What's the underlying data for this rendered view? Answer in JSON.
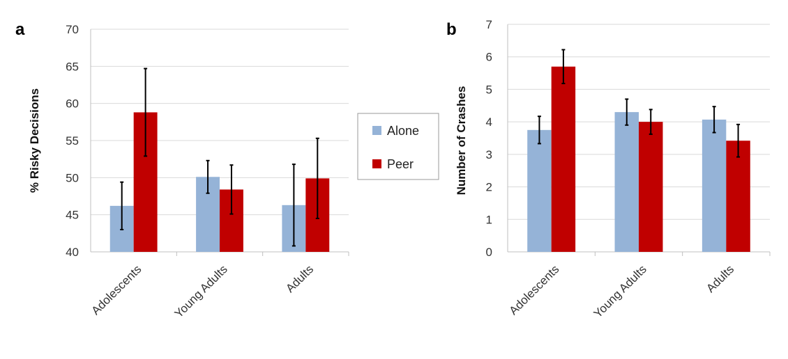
{
  "colors": {
    "alone": "#95b3d7",
    "peer": "#c00000",
    "grid": "#d9d9d9",
    "axis": "#bfbfbf",
    "errorbar": "#000000"
  },
  "legend": {
    "items": [
      {
        "label": "Alone",
        "color": "#95b3d7"
      },
      {
        "label": "Peer",
        "color": "#c00000"
      }
    ]
  },
  "chart_data": [
    {
      "panel": "a",
      "type": "bar",
      "title": "",
      "xlabel": "",
      "ylabel": "% Risky Decisions",
      "ylim": [
        40,
        70
      ],
      "yticks": [
        40,
        45,
        50,
        55,
        60,
        65,
        70
      ],
      "grid": true,
      "categories": [
        "Adolescents",
        "Young Adults",
        "Adults"
      ],
      "series": [
        {
          "name": "Alone",
          "values": [
            46.2,
            50.1,
            46.3
          ],
          "errors": [
            3.2,
            2.2,
            5.5
          ]
        },
        {
          "name": "Peer",
          "values": [
            58.8,
            48.4,
            49.9
          ],
          "errors": [
            5.9,
            3.3,
            5.4
          ]
        }
      ]
    },
    {
      "panel": "b",
      "type": "bar",
      "title": "",
      "xlabel": "",
      "ylabel": "Number of Crashes",
      "ylim": [
        0,
        7
      ],
      "yticks": [
        0,
        1,
        2,
        3,
        4,
        5,
        6,
        7
      ],
      "grid": true,
      "categories": [
        "Adolescents",
        "Young Adults",
        "Adults"
      ],
      "series": [
        {
          "name": "Alone",
          "values": [
            3.75,
            4.3,
            4.07
          ],
          "errors": [
            0.42,
            0.4,
            0.4
          ]
        },
        {
          "name": "Peer",
          "values": [
            5.7,
            4.0,
            3.42
          ],
          "errors": [
            0.52,
            0.38,
            0.5
          ]
        }
      ]
    }
  ]
}
